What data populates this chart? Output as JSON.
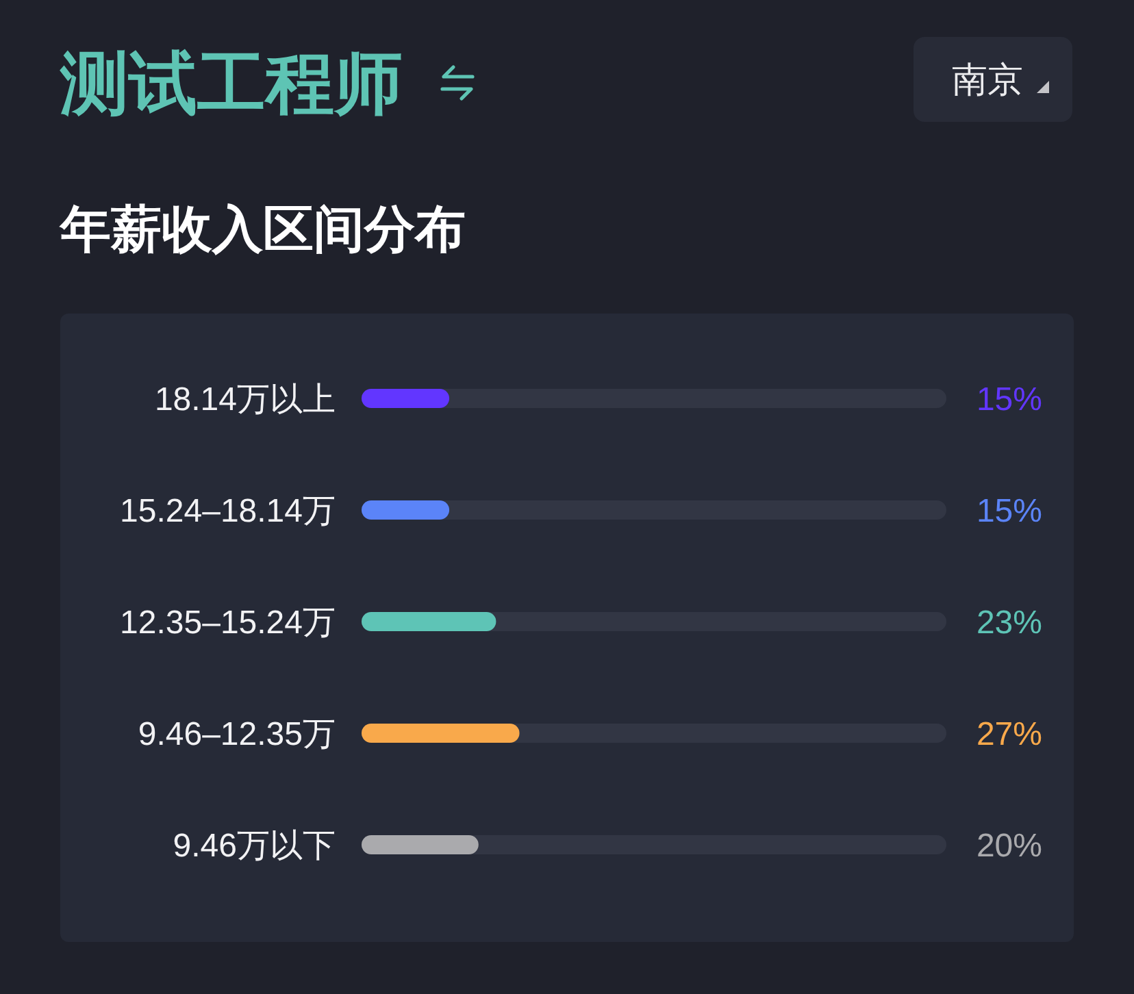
{
  "chart_data": {
    "type": "bar",
    "orientation": "horizontal",
    "title": "测试工程师",
    "subtitle": "年薪收入区间分布",
    "annotations": [
      "南京"
    ],
    "categories": [
      "18.14万以上",
      "15.24–18.14万",
      "12.35–15.24万",
      "9.46–12.35万",
      "9.46万以下"
    ],
    "values": [
      15,
      15,
      23,
      27,
      20
    ],
    "colors": [
      "#6236ff",
      "#5b84f8",
      "#5ec4b6",
      "#f9a94b",
      "#aaaaad"
    ],
    "value_labels": [
      "15%",
      "15%",
      "23%",
      "27%",
      "20%"
    ],
    "xlim": [
      0,
      100
    ],
    "tick_labels": "y"
  }
}
